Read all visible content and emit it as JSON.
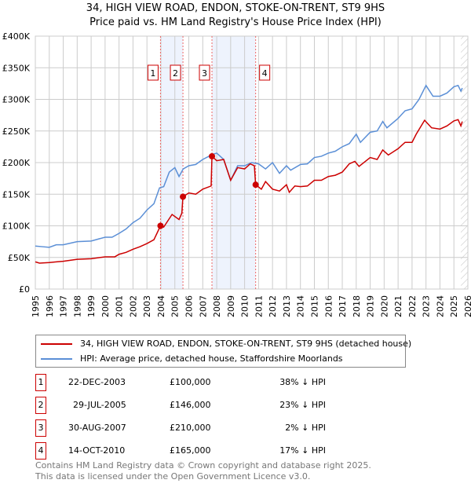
{
  "chart_data": {
    "type": "line",
    "title": "34, HIGH VIEW ROAD, ENDON, STOKE-ON-TRENT, ST9 9HS",
    "subtitle": "Price paid vs. HM Land Registry's House Price Index (HPI)",
    "xlim": [
      1995,
      2026
    ],
    "ylim": [
      0,
      400000
    ],
    "yticks": [
      0,
      50000,
      100000,
      150000,
      200000,
      250000,
      300000,
      350000,
      400000
    ],
    "ytick_labels": [
      "£0",
      "£50K",
      "£100K",
      "£150K",
      "£200K",
      "£250K",
      "£300K",
      "£350K",
      "£400K"
    ],
    "xticks": [
      1995,
      1996,
      1997,
      1998,
      1999,
      2000,
      2001,
      2002,
      2003,
      2004,
      2005,
      2006,
      2007,
      2008,
      2009,
      2010,
      2011,
      2012,
      2013,
      2014,
      2015,
      2016,
      2017,
      2018,
      2019,
      2020,
      2021,
      2022,
      2023,
      2024,
      2025,
      2026
    ],
    "grid": true,
    "series": [
      {
        "name": "34, HIGH VIEW ROAD, ENDON, STOKE-ON-TRENT, ST9 9HS (detached house)",
        "color": "#cc0000",
        "x": [
          1995,
          1995.3,
          1996,
          1996.5,
          1997,
          1998,
          1999,
          2000,
          2000.7,
          2001,
          2001.5,
          2002,
          2002.5,
          2003,
          2003.5,
          2003.97,
          2004.2,
          2004.8,
          2005.3,
          2005.5,
          2005.58,
          2006,
          2006.5,
          2007,
          2007.6,
          2007.66,
          2008,
          2008.5,
          2009,
          2009.5,
          2010,
          2010.4,
          2010.7,
          2010.79,
          2011.2,
          2011.5,
          2012,
          2012.5,
          2013,
          2013.2,
          2013.6,
          2014,
          2014.5,
          2015,
          2015.5,
          2016,
          2016.5,
          2017,
          2017.5,
          2017.9,
          2018.2,
          2019,
          2019.5,
          2019.9,
          2020.3,
          2021,
          2021.5,
          2022,
          2022.3,
          2022.9,
          2023.4,
          2024,
          2024.5,
          2025,
          2025.3,
          2025.5,
          2025.6
        ],
        "y": [
          43000,
          41000,
          42000,
          43000,
          44000,
          47000,
          48000,
          51000,
          51000,
          55000,
          58000,
          63000,
          67000,
          72000,
          78000,
          100000,
          98000,
          118000,
          110000,
          120000,
          146000,
          152000,
          150000,
          158000,
          163000,
          210000,
          203000,
          205000,
          172000,
          192000,
          190000,
          198000,
          195000,
          165000,
          158000,
          170000,
          158000,
          155000,
          165000,
          153000,
          163000,
          162000,
          163000,
          172000,
          172000,
          178000,
          180000,
          185000,
          198000,
          202000,
          194000,
          208000,
          205000,
          220000,
          212000,
          222000,
          232000,
          232000,
          245000,
          267000,
          255000,
          253000,
          258000,
          266000,
          268000,
          258000,
          265000
        ]
      },
      {
        "name": "HPI: Average price, detached house, Staffordshire Moorlands",
        "color": "#5b8fd6",
        "x": [
          1995,
          1995.5,
          1996,
          1996.5,
          1997,
          1998,
          1999,
          2000,
          2000.5,
          2001,
          2001.5,
          2002,
          2002.5,
          2003,
          2003.5,
          2003.9,
          2004.2,
          2004.6,
          2005,
          2005.3,
          2005.6,
          2006,
          2006.5,
          2007,
          2007.7,
          2008,
          2008.5,
          2009,
          2009.5,
          2010,
          2010.5,
          2011,
          2011.5,
          2012,
          2012.5,
          2013,
          2013.3,
          2014,
          2014.5,
          2015,
          2015.5,
          2016,
          2016.5,
          2017,
          2017.5,
          2018,
          2018.3,
          2019,
          2019.5,
          2019.9,
          2020.2,
          2021,
          2021.5,
          2022,
          2022.5,
          2023,
          2023.5,
          2024,
          2024.5,
          2025,
          2025.3,
          2025.5,
          2025.6
        ],
        "y": [
          68000,
          67000,
          66000,
          70000,
          70000,
          75000,
          76000,
          82000,
          82000,
          88000,
          95000,
          105000,
          112000,
          125000,
          135000,
          160000,
          162000,
          185000,
          192000,
          178000,
          190000,
          195000,
          197000,
          205000,
          213000,
          215000,
          205000,
          172000,
          195000,
          195000,
          200000,
          198000,
          190000,
          200000,
          183000,
          195000,
          188000,
          197000,
          198000,
          208000,
          210000,
          215000,
          218000,
          225000,
          230000,
          245000,
          232000,
          248000,
          250000,
          265000,
          255000,
          270000,
          282000,
          285000,
          300000,
          322000,
          305000,
          305000,
          310000,
          320000,
          322000,
          313000,
          318000
        ]
      }
    ],
    "sales": [
      {
        "label": "1",
        "x": 2003.97,
        "y": 100000,
        "date": "22-DEC-2003",
        "price": "£100,000",
        "hpi": "38% ↓ HPI"
      },
      {
        "label": "2",
        "x": 2005.58,
        "y": 146000,
        "date": "29-JUL-2005",
        "price": "£146,000",
        "hpi": "23% ↓ HPI"
      },
      {
        "label": "3",
        "x": 2007.66,
        "y": 210000,
        "date": "30-AUG-2007",
        "price": "£210,000",
        "hpi": "2% ↓ HPI"
      },
      {
        "label": "4",
        "x": 2010.79,
        "y": 165000,
        "date": "14-OCT-2010",
        "price": "£165,000",
        "hpi": "17% ↓ HPI"
      }
    ],
    "shaded_ranges": [
      [
        2003.97,
        2005.58
      ],
      [
        2007.66,
        2010.79
      ]
    ],
    "hatched_from": 2025.5
  },
  "footer": [
    "Contains HM Land Registry data © Crown copyright and database right 2025.",
    "This data is licensed under the Open Government Licence v3.0."
  ]
}
